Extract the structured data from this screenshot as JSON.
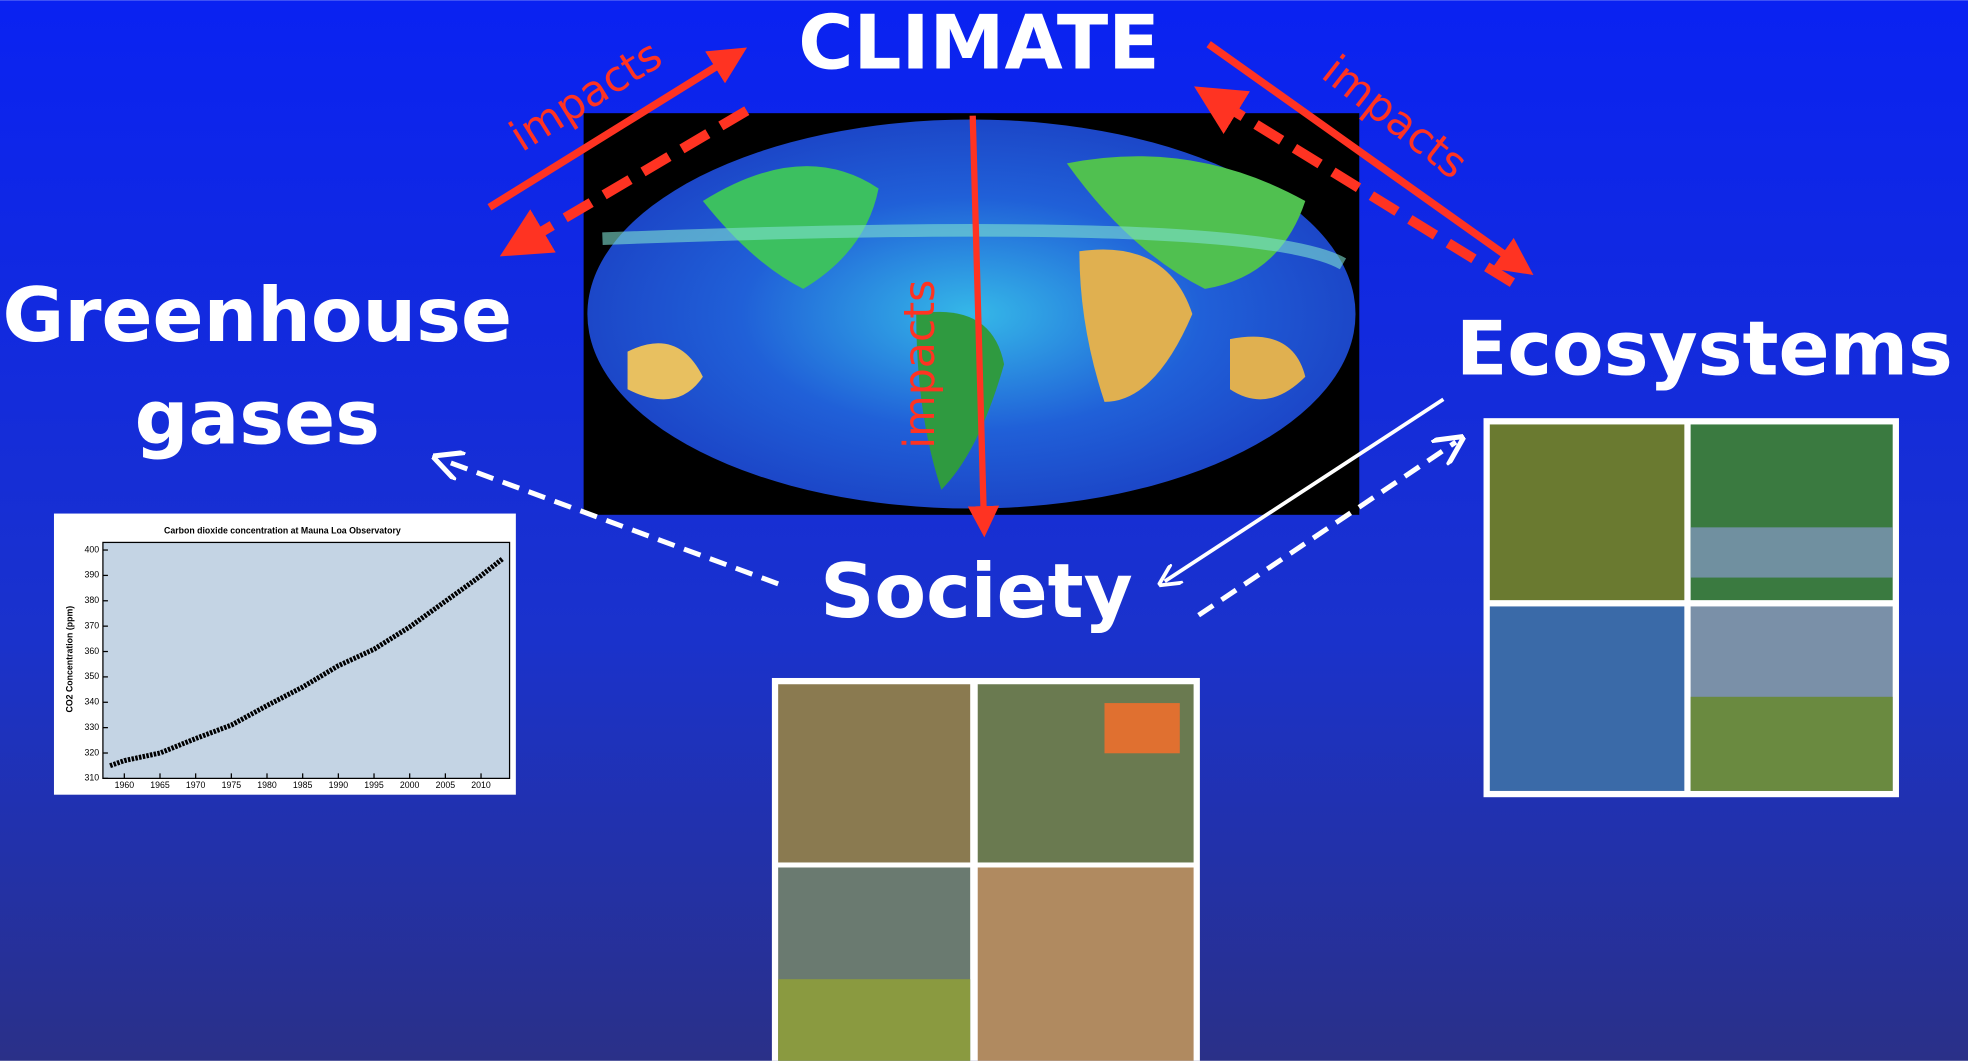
{
  "nodes": [
    {
      "label": "CLIMATE"
    },
    {
      "lines": [
        "Greenhouse",
        "gases"
      ]
    },
    {
      "label": "Ecosystems"
    },
    {
      "label": "Society"
    }
  ],
  "edges": [
    {
      "label": "impacts"
    },
    {
      "label": "impacts"
    },
    {
      "label": "impacts"
    }
  ],
  "inset_chart": {
    "type": "line",
    "title": "Carbon dioxide concentration at Mauna Loa Observatory",
    "y_label": "CO2 Concentration (ppm)",
    "x": [
      1958,
      1960,
      1965,
      1970,
      1975,
      1980,
      1985,
      1990,
      1995,
      2000,
      2005,
      2010,
      2013
    ],
    "values": [
      315,
      317,
      320,
      325.7,
      331,
      338.7,
      346,
      354.4,
      360.9,
      369.7,
      379.8,
      389.9,
      396.5
    ],
    "color": "#000000",
    "xlim": [
      1957,
      2014
    ],
    "ylim": [
      310,
      403
    ],
    "xticks": [
      1960,
      1965,
      1970,
      1975,
      1980,
      1985,
      1990,
      1995,
      2000,
      2005,
      2010
    ],
    "yticks": [
      310,
      320,
      330,
      340,
      350,
      360,
      370,
      380,
      390,
      400
    ]
  }
}
